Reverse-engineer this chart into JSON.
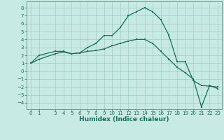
{
  "bg_color": "#c8eae4",
  "grid_color": "#a0ccc4",
  "line_color": "#1a6b5a",
  "line1_x": [
    0,
    1,
    3,
    4,
    5,
    6,
    7,
    8,
    9,
    10,
    11,
    12,
    13,
    14,
    15,
    16,
    17,
    18,
    19,
    20,
    21,
    22,
    23
  ],
  "line1_y": [
    1.0,
    2.0,
    2.5,
    2.5,
    2.2,
    2.3,
    3.0,
    3.5,
    4.5,
    4.5,
    5.5,
    7.0,
    7.5,
    8.0,
    7.5,
    6.5,
    4.5,
    1.2,
    1.2,
    -1.2,
    -1.8,
    -1.9,
    -2.0
  ],
  "line2_x": [
    0,
    1,
    3,
    4,
    5,
    6,
    7,
    8,
    9,
    10,
    11,
    12,
    13,
    14,
    15,
    16,
    17,
    18,
    19,
    20,
    21,
    22,
    23
  ],
  "line2_y": [
    1.0,
    1.5,
    2.2,
    2.4,
    2.2,
    2.3,
    2.5,
    2.6,
    2.8,
    3.2,
    3.5,
    3.8,
    4.0,
    4.0,
    3.5,
    2.5,
    1.5,
    0.5,
    -0.2,
    -1.0,
    -4.5,
    -1.8,
    -2.2
  ],
  "xlabel": "Humidex (Indice chaleur)",
  "xlim": [
    -0.5,
    23.5
  ],
  "ylim": [
    -4.8,
    8.8
  ],
  "yticks": [
    8,
    7,
    6,
    5,
    4,
    3,
    2,
    1,
    0,
    -1,
    -2,
    -3,
    -4
  ],
  "xticks": [
    0,
    1,
    3,
    4,
    5,
    6,
    7,
    8,
    9,
    10,
    11,
    12,
    13,
    14,
    15,
    16,
    17,
    18,
    19,
    20,
    21,
    22,
    23
  ],
  "xlabel_fontsize": 6.5,
  "tick_fontsize": 5.0
}
